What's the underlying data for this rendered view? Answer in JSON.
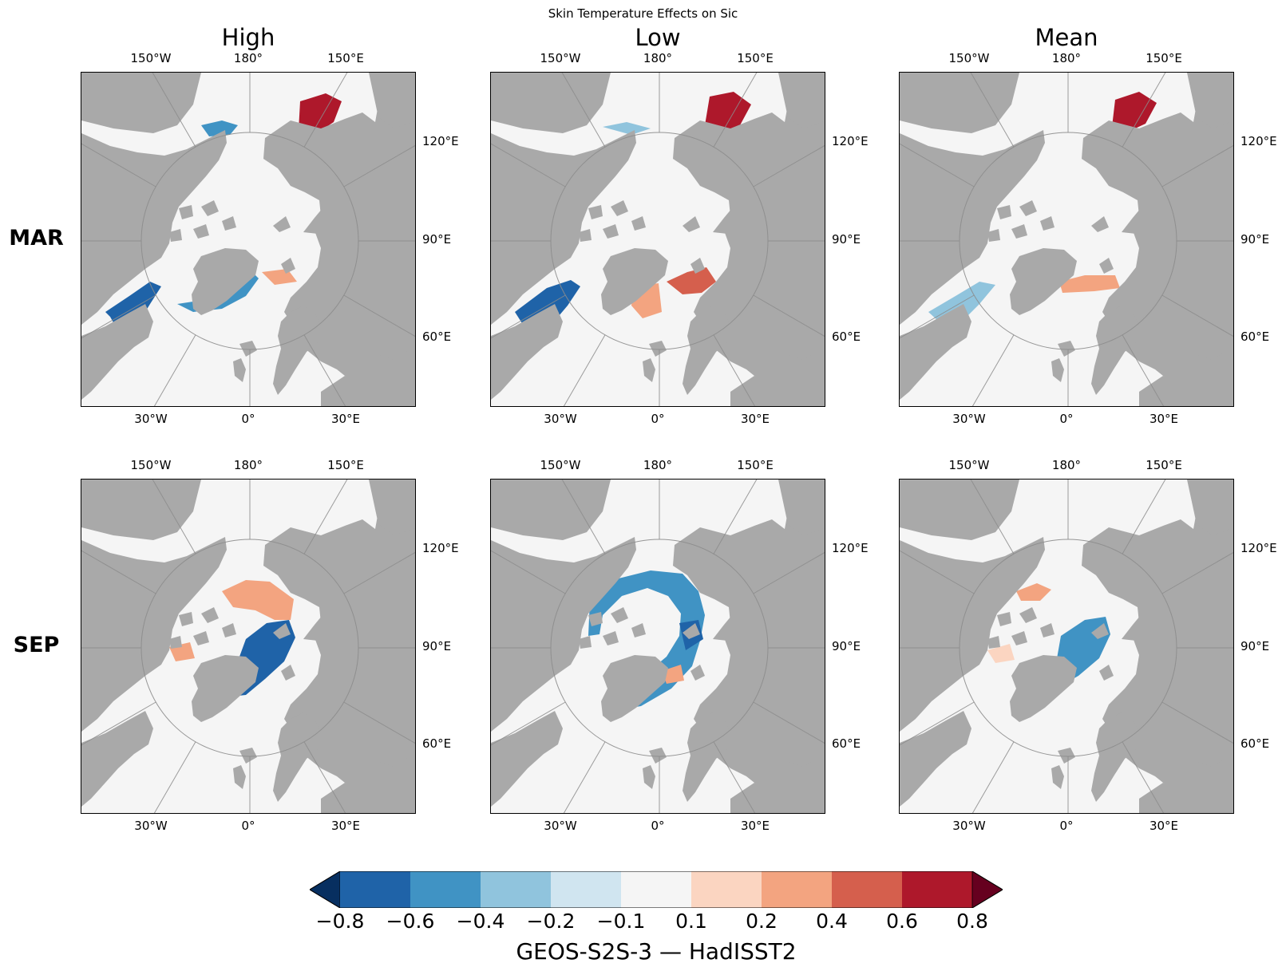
{
  "title": "Skin Temperature Effects on Sic",
  "columns": [
    "High",
    "Low",
    "Mean"
  ],
  "rows": [
    "MAR",
    "SEP"
  ],
  "tick_labels": {
    "top": [
      "150°W",
      "180°",
      "150°E"
    ],
    "right": [
      "120°E",
      "90°E",
      "60°E"
    ],
    "bottom": [
      "30°W",
      "0°",
      "30°E"
    ]
  },
  "map_colors": {
    "ocean": "#f5f5f5",
    "land": "#a9a9a9",
    "gridline": "#8c8c8c"
  },
  "chart_data": {
    "type": "map-grid",
    "projection": "north polar stereographic",
    "variable": "Sic",
    "panels": [
      {
        "row": "MAR",
        "column": "High",
        "anomalies": [
          {
            "region": "East Siberian / Okhotsk (top-right)",
            "value": 0.7
          },
          {
            "region": "Bering strait edge",
            "value": -0.4
          },
          {
            "region": "Labrador / Baffin (lower-left)",
            "value": -0.7
          },
          {
            "region": "Greenland Sea / Barents",
            "value": -0.5
          },
          {
            "region": "Barents (patch)",
            "value": 0.3
          }
        ]
      },
      {
        "row": "MAR",
        "column": "Low",
        "anomalies": [
          {
            "region": "East Siberian / Okhotsk (top-right)",
            "value": 0.7
          },
          {
            "region": "Bering strait edge",
            "value": -0.2
          },
          {
            "region": "Labrador / Baffin (lower-left)",
            "value": -0.7
          },
          {
            "region": "Barents / Kara",
            "value": 0.5
          },
          {
            "region": "Greenland Sea",
            "value": 0.3
          }
        ]
      },
      {
        "row": "MAR",
        "column": "Mean",
        "anomalies": [
          {
            "region": "East Siberian / Okhotsk (top-right)",
            "value": 0.7
          },
          {
            "region": "Labrador / Baffin (lower-left)",
            "value": -0.3
          },
          {
            "region": "Barents / Greenland Sea",
            "value": 0.3
          }
        ]
      },
      {
        "row": "SEP",
        "column": "High",
        "anomalies": [
          {
            "region": "Chukchi / East Siberian",
            "value": 0.4
          },
          {
            "region": "Laptev / Kara (right of pole)",
            "value": -0.7
          },
          {
            "region": "Canadian Archipelago",
            "value": 0.3
          }
        ]
      },
      {
        "row": "SEP",
        "column": "Low",
        "anomalies": [
          {
            "region": "Ice edge ring",
            "value": -0.4
          },
          {
            "region": "Laptev (right of pole)",
            "value": -0.7
          },
          {
            "region": "Greenland Sea",
            "value": 0.3
          }
        ]
      },
      {
        "row": "SEP",
        "column": "Mean",
        "anomalies": [
          {
            "region": "Chukchi",
            "value": 0.4
          },
          {
            "region": "Laptev / Kara (right of pole)",
            "value": -0.5
          },
          {
            "region": "Canadian Archipelago",
            "value": 0.2
          }
        ]
      }
    ],
    "colorbar": {
      "levels": [
        -0.8,
        -0.6,
        -0.4,
        -0.2,
        -0.1,
        0.1,
        0.2,
        0.4,
        0.6,
        0.8
      ],
      "tick_labels": [
        "−0.8",
        "−0.6",
        "−0.4",
        "−0.2",
        "−0.1",
        "0.1",
        "0.2",
        "0.4",
        "0.6",
        "0.8"
      ],
      "colors": [
        "#1f63a8",
        "#4093c4",
        "#90c4dd",
        "#d0e5f0",
        "#f5f5f5",
        "#fbd5c1",
        "#f3a480",
        "#d55f4d",
        "#ae182b"
      ],
      "under_color": "#072f60",
      "over_color": "#66001f",
      "extend": "both",
      "label": "GEOS-S2S-3 — HadISST2"
    }
  }
}
